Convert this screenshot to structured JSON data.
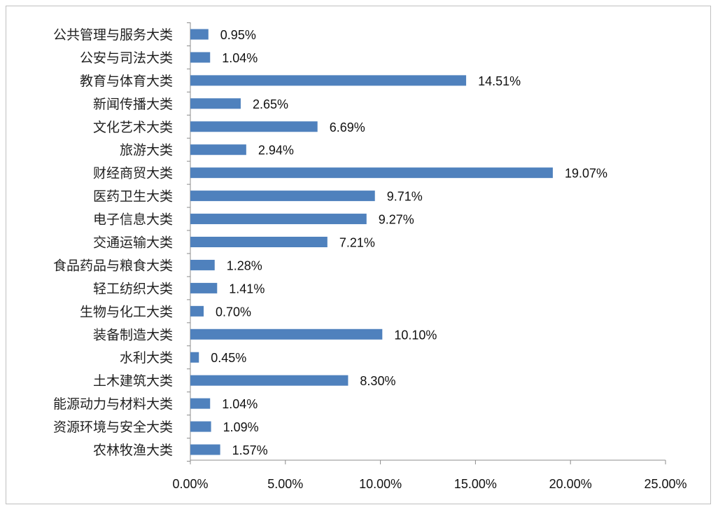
{
  "chart_data": {
    "type": "bar",
    "orientation": "horizontal",
    "categories": [
      "公共管理与服务大类",
      "公安与司法大类",
      "教育与体育大类",
      "新闻传播大类",
      "文化艺术大类",
      "旅游大类",
      "财经商贸大类",
      "医药卫生大类",
      "电子信息大类",
      "交通运输大类",
      "食品药品与粮食大类",
      "轻工纺织大类",
      "生物与化工大类",
      "装备制造大类",
      "水利大类",
      "土木建筑大类",
      "能源动力与材料大类",
      "资源环境与安全大类",
      "农林牧渔大类"
    ],
    "values": [
      0.95,
      1.04,
      14.51,
      2.65,
      6.69,
      2.94,
      19.07,
      9.71,
      9.27,
      7.21,
      1.28,
      1.41,
      0.7,
      10.1,
      0.45,
      8.3,
      1.04,
      1.09,
      1.57
    ],
    "value_labels": [
      "0.95%",
      "1.04%",
      "14.51%",
      "2.65%",
      "6.69%",
      "2.94%",
      "19.07%",
      "9.71%",
      "9.27%",
      "7.21%",
      "1.28%",
      "1.41%",
      "0.70%",
      "10.10%",
      "0.45%",
      "8.30%",
      "1.04%",
      "1.09%",
      "1.57%"
    ],
    "xlim": [
      0,
      25
    ],
    "xticks": [
      0,
      5,
      10,
      15,
      20,
      25
    ],
    "xtick_labels": [
      "0.00%",
      "5.00%",
      "10.00%",
      "15.00%",
      "20.00%",
      "25.00%"
    ],
    "title": "",
    "xlabel": "",
    "ylabel": "",
    "grid": false,
    "legend": "none",
    "bar_color": "#4f81bd"
  }
}
